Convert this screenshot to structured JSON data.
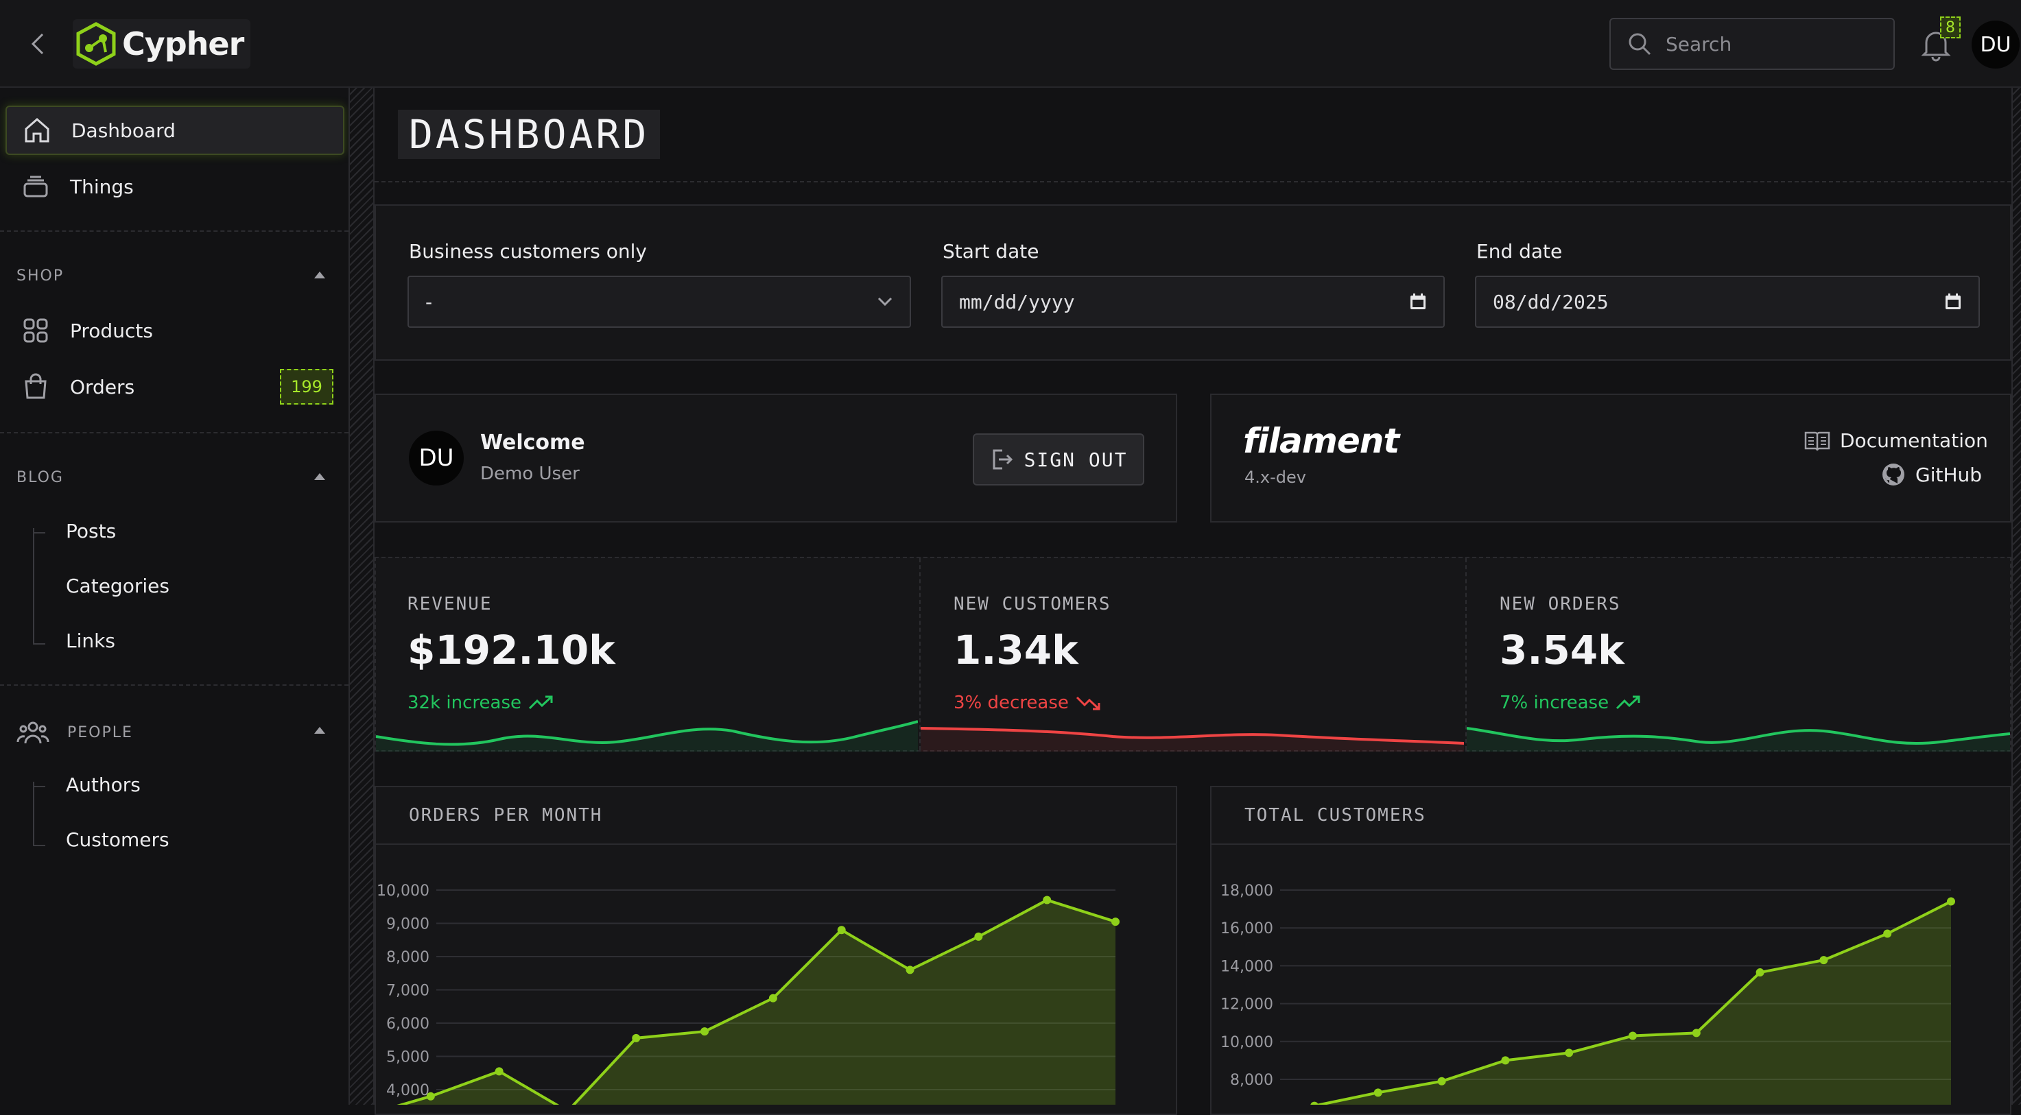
{
  "app": {
    "name": "Cypher",
    "accent": "#8fd11a"
  },
  "topbar": {
    "search_placeholder": "Search",
    "notifications_count": "8",
    "user_initials": "DU"
  },
  "sidebar": {
    "top_items": [
      {
        "label": "Dashboard",
        "icon": "home-icon",
        "active": true
      },
      {
        "label": "Things",
        "icon": "layers-icon",
        "active": false
      }
    ],
    "groups": [
      {
        "label": "SHOP",
        "items": [
          {
            "label": "Products",
            "icon": "grid-icon"
          },
          {
            "label": "Orders",
            "icon": "shopping-bag-icon",
            "badge": "199"
          }
        ]
      },
      {
        "label": "BLOG",
        "items": [
          {
            "label": "Posts"
          },
          {
            "label": "Categories"
          },
          {
            "label": "Links"
          }
        ]
      },
      {
        "label": "PEOPLE",
        "icon": "users-icon",
        "items": [
          {
            "label": "Authors"
          },
          {
            "label": "Customers"
          }
        ]
      }
    ]
  },
  "main": {
    "page_title": "DASHBOARD",
    "filters": {
      "business_label": "Business customers only",
      "business_value": "-",
      "start_label": "Start date",
      "start_placeholder": "mm/dd/yyyy",
      "end_label": "End date",
      "end_value": "08/dd/2025"
    },
    "welcome": {
      "title": "Welcome",
      "user_name": "Demo User",
      "initials": "DU",
      "sign_out": "SIGN OUT"
    },
    "filament": {
      "brand": "filament",
      "version": "4.x-dev",
      "docs": "Documentation",
      "github": "GitHub"
    },
    "stats": [
      {
        "label": "REVENUE",
        "value": "$192.10k",
        "desc": "32k increase",
        "trend": "up",
        "color": "#22c55e"
      },
      {
        "label": "NEW CUSTOMERS",
        "value": "1.34k",
        "desc": "3% decrease",
        "trend": "down",
        "color": "#ef4444"
      },
      {
        "label": "NEW ORDERS",
        "value": "3.54k",
        "desc": "7% increase",
        "trend": "up",
        "color": "#22c55e"
      }
    ]
  },
  "chart_data": [
    {
      "type": "area",
      "title": "ORDERS PER MONTH",
      "ylim": [
        3000,
        10000
      ],
      "yticks": [
        "4,000",
        "5,000",
        "6,000",
        "7,000",
        "8,000",
        "9,000",
        "10,000"
      ],
      "series": [
        {
          "values": [
            3200,
            3800,
            4550,
            3350,
            5550,
            5750,
            6750,
            8800,
            7600,
            8600,
            9700,
            9050
          ]
        }
      ],
      "grid": true
    },
    {
      "type": "area",
      "title": "TOTAL CUSTOMERS",
      "ylim": [
        7000,
        18000
      ],
      "yticks": [
        "8,000",
        "10,000",
        "12,000",
        "14,000",
        "16,000",
        "18,000"
      ],
      "series": [
        {
          "values": [
            6600,
            7300,
            7900,
            9000,
            9400,
            10300,
            10450,
            13650,
            14300,
            15700,
            17400
          ]
        }
      ],
      "grid": true
    }
  ]
}
